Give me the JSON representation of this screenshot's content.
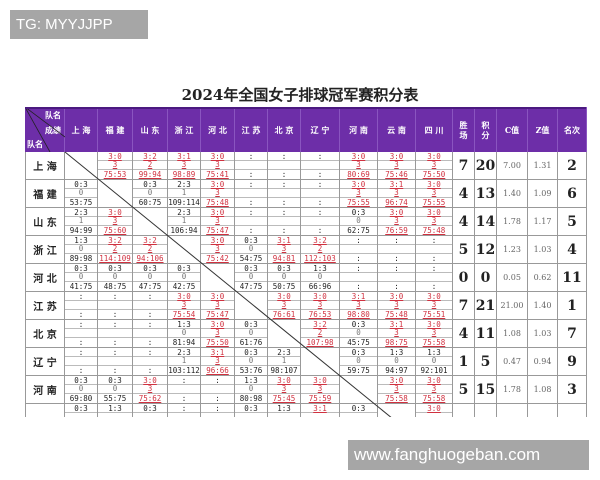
{
  "watermark_top": "TG: MYYJJPP",
  "watermark_bottom": "www.fanghuogeban.com",
  "title": "2024年全国女子排球冠军赛积分表",
  "colors": {
    "header_bg": "#6d2ea8",
    "win": "#d0303f",
    "loss": "#222222"
  },
  "header": {
    "corner": {
      "top": "队名",
      "middle": "成绩",
      "bottom": "队名"
    },
    "teams": [
      "上 海",
      "福 建",
      "山 东",
      "浙 江",
      "河 北",
      "江 苏",
      "北 京",
      "辽 宁",
      "河 南",
      "云 南",
      "四 川"
    ],
    "stats": [
      "胜场",
      "积分",
      "C值",
      "Z值",
      "名次"
    ]
  },
  "rows": [
    {
      "team": "上 海",
      "cells": [
        null,
        [
          "3:0",
          "3",
          "75:53"
        ],
        [
          "3:2",
          "2",
          "99:94"
        ],
        [
          "3:1",
          "3",
          "98:89"
        ],
        [
          "3:0",
          "3",
          "75:41"
        ],
        [
          ":",
          "",
          ":"
        ],
        [
          ":",
          "",
          ":"
        ],
        [
          ":",
          "",
          ":"
        ],
        [
          "3:0",
          "3",
          "80:69"
        ],
        [
          "3:0",
          "3",
          "75:46"
        ],
        [
          "3:0",
          "3",
          "75:50"
        ]
      ],
      "stats": [
        "7",
        "20",
        "7.00",
        "1.31",
        "2"
      ]
    },
    {
      "team": "福 建",
      "cells": [
        [
          "0:3",
          "0",
          "53:75"
        ],
        null,
        [
          "0:3",
          "0",
          "60:75"
        ],
        [
          "2:3",
          "1",
          "109:114"
        ],
        [
          "3:0",
          "3",
          "75:48"
        ],
        [
          ":",
          "",
          ":"
        ],
        [
          ":",
          "",
          ":"
        ],
        [
          ":",
          "",
          ":"
        ],
        [
          "3:0",
          "3",
          "75:55"
        ],
        [
          "3:1",
          "3",
          "96:74"
        ],
        [
          "3:0",
          "3",
          "75:55"
        ]
      ],
      "stats": [
        "4",
        "13",
        "1.40",
        "1.09",
        "6"
      ]
    },
    {
      "team": "山 东",
      "cells": [
        [
          "2:3",
          "1",
          "94:99"
        ],
        [
          "3:0",
          "3",
          "75:60"
        ],
        null,
        [
          "2:3",
          "1",
          "106:94"
        ],
        [
          "3:0",
          "3",
          "75:47"
        ],
        [
          ":",
          "",
          ":"
        ],
        [
          ":",
          "",
          ":"
        ],
        [
          ":",
          "",
          ":"
        ],
        [
          "0:3",
          "0",
          "62:75"
        ],
        [
          "3:0",
          "3",
          "76:59"
        ],
        [
          "3:0",
          "3",
          "75:48"
        ]
      ],
      "stats": [
        "4",
        "14",
        "1.78",
        "1.17",
        "5"
      ]
    },
    {
      "team": "浙 江",
      "cells": [
        [
          "1:3",
          "0",
          "89:98"
        ],
        [
          "3:2",
          "2",
          "114:109"
        ],
        [
          "3:2",
          "2",
          "94:106"
        ],
        null,
        [
          "3:0",
          "3",
          "75:42"
        ],
        [
          "0:3",
          "0",
          "54:75"
        ],
        [
          "3:1",
          "3",
          "94:81"
        ],
        [
          "3:2",
          "2",
          "112:103"
        ],
        [
          ":",
          "",
          ":"
        ],
        [
          ":",
          "",
          ":"
        ],
        [
          ":",
          "",
          ":"
        ]
      ],
      "stats": [
        "5",
        "12",
        "1.23",
        "1.03",
        "4"
      ]
    },
    {
      "team": "河 北",
      "cells": [
        [
          "0:3",
          "0",
          "41:75"
        ],
        [
          "0:3",
          "0",
          "48:75"
        ],
        [
          "0:3",
          "0",
          "47:75"
        ],
        [
          "0:3",
          "0",
          "42:75"
        ],
        null,
        [
          "0:3",
          "0",
          "47:75"
        ],
        [
          "0:3",
          "0",
          "50:75"
        ],
        [
          "1:3",
          "0",
          "66:96"
        ],
        [
          ":",
          "",
          ":"
        ],
        [
          ":",
          "",
          ":"
        ],
        [
          ":",
          "",
          ":"
        ]
      ],
      "stats": [
        "0",
        "0",
        "0.05",
        "0.62",
        "11"
      ]
    },
    {
      "team": "江 苏",
      "cells": [
        [
          ":",
          "",
          ":"
        ],
        [
          ":",
          "",
          ":"
        ],
        [
          ":",
          "",
          ":"
        ],
        [
          "3:0",
          "3",
          "75:54"
        ],
        [
          "3:0",
          "3",
          "75:47"
        ],
        null,
        [
          "3:0",
          "3",
          "76:61"
        ],
        [
          "3:0",
          "3",
          "76:53"
        ],
        [
          "3:1",
          "3",
          "98:80"
        ],
        [
          "3:0",
          "3",
          "75:48"
        ],
        [
          "3:0",
          "3",
          "75:51"
        ]
      ],
      "stats": [
        "7",
        "21",
        "21.00",
        "1.40",
        "1"
      ]
    },
    {
      "team": "北 京",
      "cells": [
        [
          ":",
          "",
          ":"
        ],
        [
          ":",
          "",
          ":"
        ],
        [
          ":",
          "",
          ":"
        ],
        [
          "1:3",
          "0",
          "81:94"
        ],
        [
          "3:0",
          "3",
          "75:50"
        ],
        [
          "0:3",
          "0",
          "61:76"
        ],
        null,
        [
          "3:2",
          "2",
          "107:98"
        ],
        [
          "0:3",
          "0",
          "45:75"
        ],
        [
          "3:1",
          "3",
          "98:75"
        ],
        [
          "3:0",
          "3",
          "75:58"
        ]
      ],
      "stats": [
        "4",
        "11",
        "1.08",
        "1.03",
        "7"
      ]
    },
    {
      "team": "辽 宁",
      "cells": [
        [
          ":",
          "",
          ":"
        ],
        [
          ":",
          "",
          ":"
        ],
        [
          ":",
          "",
          ":"
        ],
        [
          "2:3",
          "1",
          "103:112"
        ],
        [
          "3:1",
          "3",
          "96:66"
        ],
        [
          "0:3",
          "0",
          "53:76"
        ],
        [
          "2:3",
          "1",
          "98:107"
        ],
        null,
        [
          "0:3",
          "0",
          "59:75"
        ],
        [
          "1:3",
          "0",
          "94:97"
        ],
        [
          "1:3",
          "0",
          "92:101"
        ]
      ],
      "stats": [
        "1",
        "5",
        "0.47",
        "0.94",
        "9"
      ]
    },
    {
      "team": "河 南",
      "cells": [
        [
          "0:3",
          "0",
          "69:80"
        ],
        [
          "0:3",
          "0",
          "55:75"
        ],
        [
          "3:0",
          "3",
          "75:62"
        ],
        [
          ":",
          "",
          ":"
        ],
        [
          ":",
          "",
          ":"
        ],
        [
          "1:3",
          "0",
          "80:98"
        ],
        [
          "3:0",
          "3",
          "75:45"
        ],
        [
          "3:0",
          "3",
          "75:59"
        ],
        null,
        [
          "3:0",
          "3",
          "75:58"
        ],
        [
          "3:0",
          "3",
          "75:58"
        ]
      ],
      "stats": [
        "5",
        "15",
        "1.78",
        "1.08",
        "3"
      ]
    },
    {
      "team": "",
      "cells": [
        [
          "0:3",
          "",
          ""
        ],
        [
          "1:3",
          "",
          ""
        ],
        [
          "0:3",
          "",
          ""
        ],
        [
          ":",
          "",
          ""
        ],
        [
          ":",
          "",
          ""
        ],
        [
          "0:3",
          "",
          ""
        ],
        [
          "1:3",
          "",
          ""
        ],
        [
          "3:1",
          "",
          ""
        ],
        [
          "0:3",
          "",
          ""
        ],
        null,
        [
          "3:0",
          "",
          ""
        ]
      ],
      "stats": [
        "",
        "",
        "",
        "",
        ""
      ]
    }
  ]
}
